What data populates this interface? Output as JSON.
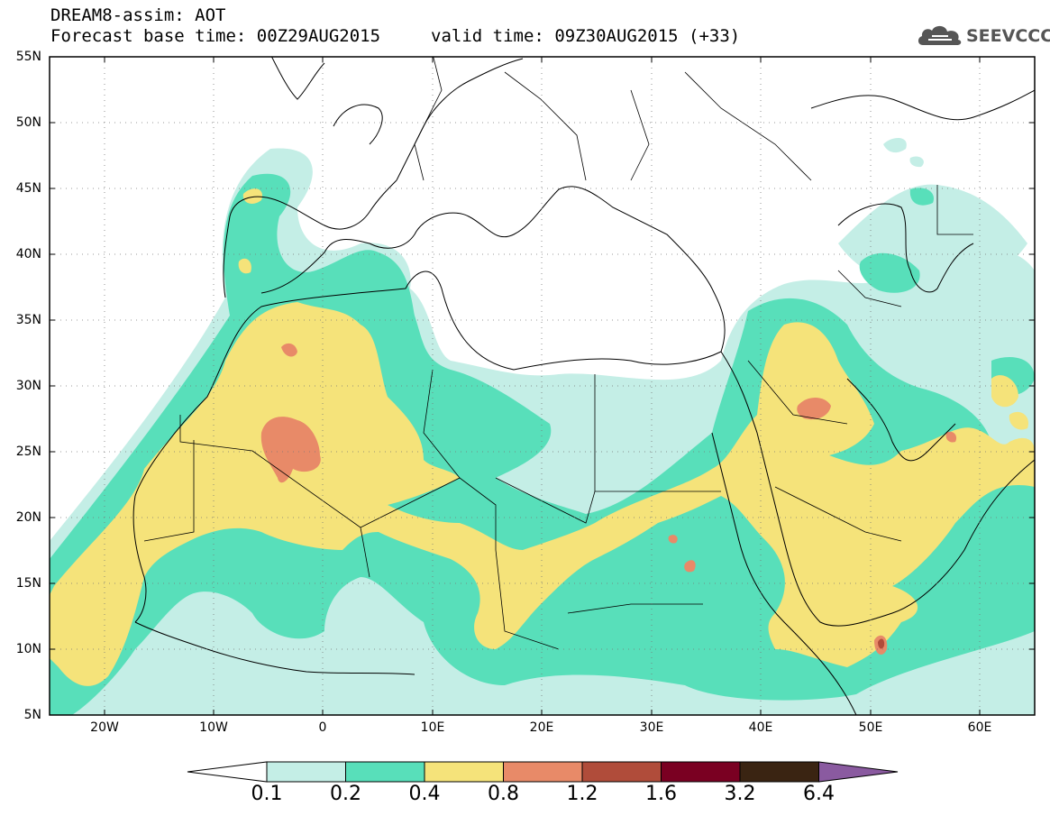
{
  "title": {
    "line1": "DREAM8-assim: AOT",
    "base_time": "Forecast base time: 00Z29AUG2015",
    "valid_time": "valid time: 09Z30AUG2015 (+33)"
  },
  "logo": {
    "text": "SEEVCCC",
    "icon": "cloud-icon"
  },
  "map": {
    "lat_labels": [
      "55N",
      "50N",
      "45N",
      "40N",
      "35N",
      "30N",
      "25N",
      "20N",
      "15N",
      "10N",
      "5N"
    ],
    "lon_labels": [
      "20W",
      "10W",
      "0",
      "10E",
      "20E",
      "30E",
      "40E",
      "50E",
      "60E"
    ],
    "extent": {
      "lon_min": -25,
      "lon_max": 65,
      "lat_min": 5,
      "lat_max": 55
    }
  },
  "colorbar": {
    "labels": [
      "0.1",
      "0.2",
      "0.4",
      "0.8",
      "1.2",
      "1.6",
      "3.2",
      "6.4"
    ],
    "colors": [
      "#ffffff",
      "#c4eee6",
      "#58dfba",
      "#f5e37a",
      "#e88a68",
      "#b04c3a",
      "#7a0022",
      "#3a2412",
      "#8a5aa0"
    ]
  }
}
